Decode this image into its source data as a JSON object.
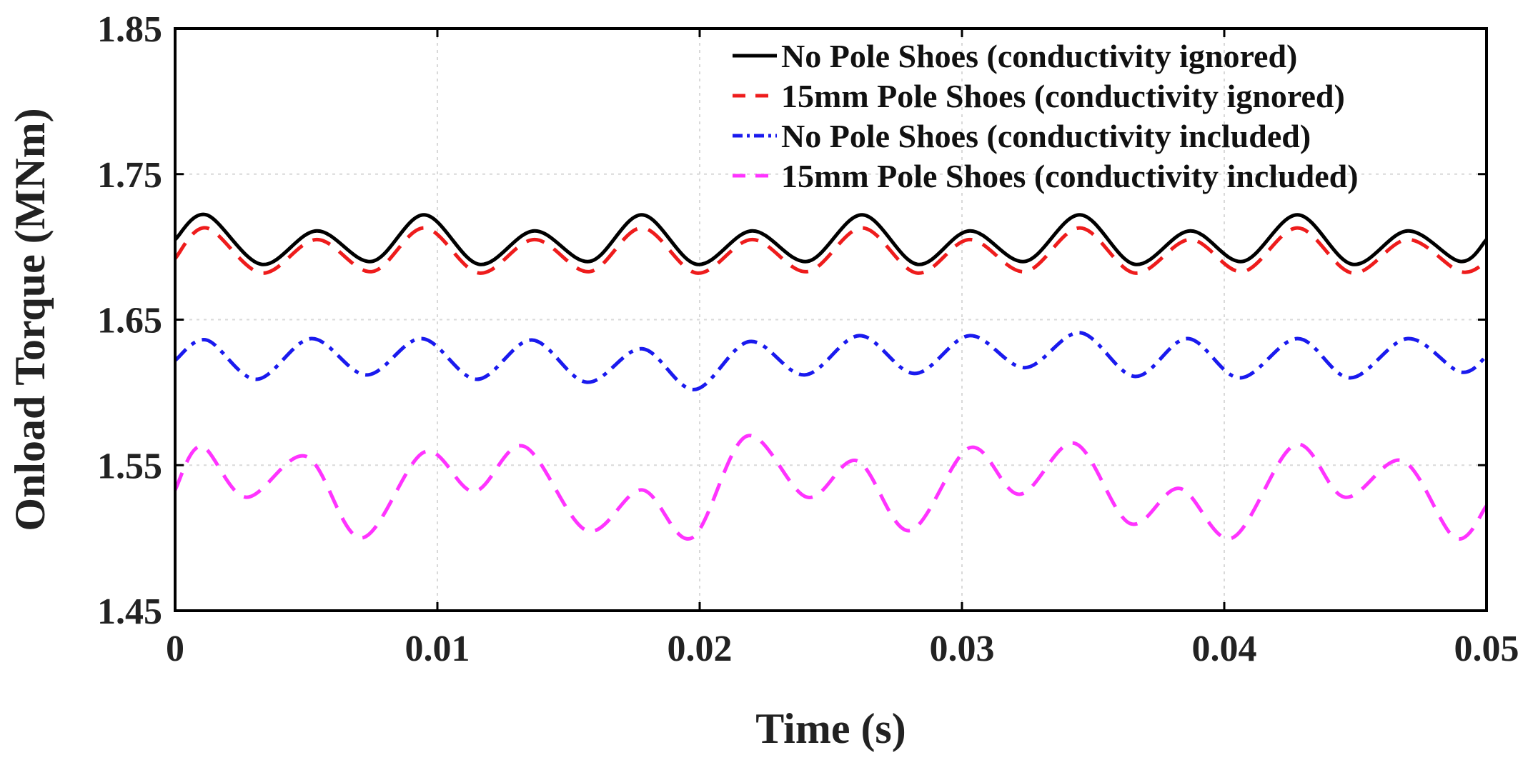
{
  "chart_data": {
    "type": "line",
    "title": "",
    "xlabel": "Time (s)",
    "ylabel": "Onload Torque (MNm)",
    "xlim": [
      0,
      0.05
    ],
    "ylim": [
      1.45,
      1.85
    ],
    "xticks": [
      0,
      0.01,
      0.02,
      0.03,
      0.04,
      0.05
    ],
    "xtick_labels": [
      "0",
      "0.01",
      "0.02",
      "0.03",
      "0.04",
      "0.05"
    ],
    "yticks": [
      1.45,
      1.55,
      1.65,
      1.75,
      1.85
    ],
    "ytick_labels": [
      "1.45",
      "1.55",
      "1.65",
      "1.75",
      "1.85"
    ],
    "grid": true,
    "legend_position": "top-right",
    "series": [
      {
        "name": "No Pole Shoes (conductivity ignored)",
        "color": "#000000",
        "dash": "solid",
        "x": [
          0,
          0.0012,
          0.0033,
          0.0054,
          0.0075,
          0.0095,
          0.0116,
          0.0137,
          0.0158,
          0.0178,
          0.0199,
          0.022,
          0.0241,
          0.0262,
          0.0283,
          0.0303,
          0.0324,
          0.0345,
          0.0366,
          0.0387,
          0.0407,
          0.0428,
          0.0449,
          0.047,
          0.049,
          0.05
        ],
        "y": [
          1.705,
          1.722,
          1.688,
          1.711,
          1.69,
          1.722,
          1.688,
          1.711,
          1.69,
          1.722,
          1.688,
          1.711,
          1.69,
          1.722,
          1.688,
          1.711,
          1.69,
          1.722,
          1.688,
          1.711,
          1.69,
          1.722,
          1.688,
          1.711,
          1.69,
          1.705
        ]
      },
      {
        "name": "15mm Pole Shoes (conductivity ignored)",
        "color": "#ee1c1c",
        "dash": "dash",
        "x": [
          0,
          0.0012,
          0.0033,
          0.0054,
          0.0075,
          0.0095,
          0.0116,
          0.0137,
          0.0158,
          0.0178,
          0.0199,
          0.022,
          0.0241,
          0.0262,
          0.0283,
          0.0303,
          0.0324,
          0.0345,
          0.0366,
          0.0387,
          0.0407,
          0.0428,
          0.0449,
          0.047,
          0.049,
          0.05
        ],
        "y": [
          1.692,
          1.713,
          1.682,
          1.705,
          1.683,
          1.713,
          1.682,
          1.705,
          1.683,
          1.713,
          1.682,
          1.705,
          1.683,
          1.713,
          1.682,
          1.705,
          1.683,
          1.713,
          1.682,
          1.705,
          1.683,
          1.713,
          1.682,
          1.705,
          1.683,
          1.69
        ]
      },
      {
        "name": "No Pole Shoes (conductivity included)",
        "color": "#1a1aee",
        "dash": "dashdot",
        "x": [
          0,
          0.0012,
          0.0031,
          0.0052,
          0.0073,
          0.0094,
          0.0115,
          0.0136,
          0.0157,
          0.0178,
          0.0198,
          0.0219,
          0.024,
          0.0261,
          0.0282,
          0.0303,
          0.0324,
          0.0345,
          0.0366,
          0.0386,
          0.0406,
          0.0428,
          0.0448,
          0.047,
          0.049,
          0.05
        ],
        "y": [
          1.622,
          1.636,
          1.609,
          1.637,
          1.612,
          1.637,
          1.609,
          1.636,
          1.607,
          1.63,
          1.602,
          1.635,
          1.612,
          1.639,
          1.613,
          1.639,
          1.617,
          1.641,
          1.611,
          1.637,
          1.61,
          1.637,
          1.61,
          1.637,
          1.614,
          1.625
        ]
      },
      {
        "name": "15mm Pole Shoes (conductivity included)",
        "color": "#ff33ff",
        "dash": "dash",
        "x": [
          0,
          0.001,
          0.0027,
          0.005,
          0.0071,
          0.0095,
          0.0114,
          0.0133,
          0.0157,
          0.0178,
          0.0197,
          0.0218,
          0.0241,
          0.026,
          0.028,
          0.0303,
          0.0322,
          0.0343,
          0.0364,
          0.0383,
          0.0403,
          0.0427,
          0.0446,
          0.0468,
          0.0488,
          0.05
        ],
        "y": [
          1.533,
          1.563,
          1.528,
          1.556,
          1.5,
          1.559,
          1.532,
          1.563,
          1.505,
          1.533,
          1.5,
          1.57,
          1.528,
          1.553,
          1.505,
          1.562,
          1.53,
          1.565,
          1.51,
          1.534,
          1.5,
          1.564,
          1.528,
          1.553,
          1.5,
          1.522
        ]
      }
    ]
  }
}
